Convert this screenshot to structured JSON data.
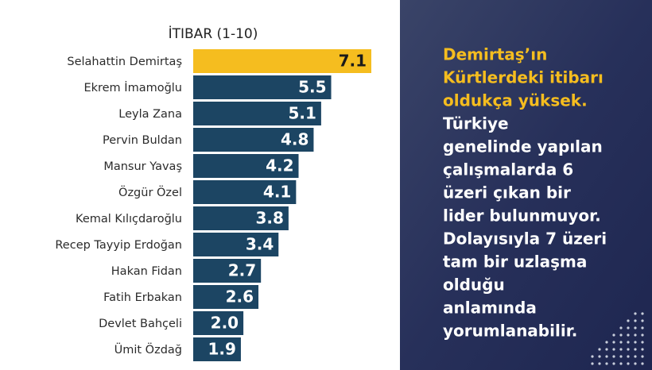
{
  "chart_data": {
    "type": "bar",
    "orientation": "horizontal",
    "title": "İTIBAR (1-10)",
    "categories": [
      "Selahattin Demirtaş",
      "Ekrem İmamoğlu",
      "Leyla Zana",
      "Pervin Buldan",
      "Mansur Yavaş",
      "Özgür Özel",
      "Kemal Kılıçdaroğlu",
      "Recep Tayyip Erdoğan",
      "Hakan Fidan",
      "Fatih Erbakan",
      "Devlet Bahçeli",
      "Ümit Özdağ"
    ],
    "values": [
      7.1,
      5.5,
      5.1,
      4.8,
      4.2,
      4.1,
      3.8,
      3.4,
      2.7,
      2.6,
      2.0,
      1.9
    ],
    "value_labels": [
      "7.1",
      "5.5",
      "5.1",
      "4.8",
      "4.2",
      "4.1",
      "3.8",
      "3.4",
      "2.7",
      "2.6",
      "2.0",
      "1.9"
    ],
    "colors": [
      "#f5bd1f",
      "#1c4563",
      "#1c4563",
      "#1c4563",
      "#1c4563",
      "#1c4563",
      "#1c4563",
      "#1c4563",
      "#1c4563",
      "#1c4563",
      "#1c4563",
      "#1c4563"
    ]
  },
  "side_panel": {
    "highlight_lines": [
      "Demirtaş’ın",
      "Kürtlerdeki itibarı",
      "oldukça yüksek."
    ],
    "body_lines": [
      "Türkiye",
      "genelinde yapılan",
      "çalışmalarda 6",
      "üzeri çıkan bir",
      "lider bulunmuyor.",
      "Dolayısıyla 7 üzeri",
      "tam bir uzlaşma",
      "olduğu",
      "anlamında",
      "yorumlanabilir."
    ]
  }
}
